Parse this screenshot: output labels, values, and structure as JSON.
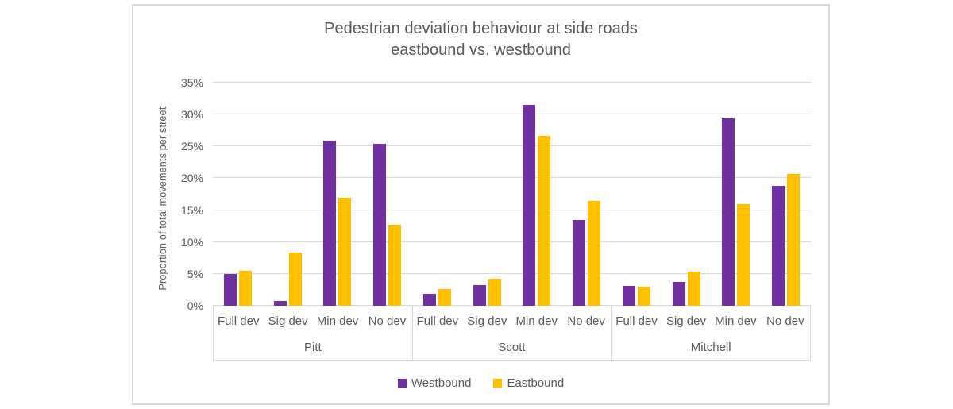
{
  "chart_data": {
    "type": "bar",
    "title": "Pedestrian deviation behaviour at side roads eastbound vs. westbound",
    "title_lines": [
      "Pedestrian deviation behaviour at side roads",
      "eastbound vs. westbound"
    ],
    "xlabel": "",
    "ylabel": "Proportion of total movements per street",
    "ylim": [
      0,
      35
    ],
    "ytick_step": 5,
    "ytick_labels": [
      "0%",
      "5%",
      "10%",
      "15%",
      "20%",
      "25%",
      "30%",
      "35%"
    ],
    "grid": true,
    "legend_position": "bottom",
    "groups": [
      "Pitt",
      "Scott",
      "Mitchell"
    ],
    "categories": [
      "Full dev",
      "Sig dev",
      "Min dev",
      "No dev"
    ],
    "series": [
      {
        "name": "Westbound",
        "color": "#7030A0",
        "values_by_group": [
          [
            5.0,
            0.7,
            25.9,
            25.4
          ],
          [
            1.9,
            3.3,
            31.5,
            13.4
          ],
          [
            3.1,
            3.8,
            29.4,
            18.8
          ]
        ]
      },
      {
        "name": "Eastbound",
        "color": "#FFC000",
        "values_by_group": [
          [
            5.5,
            8.3,
            17.0,
            12.7
          ],
          [
            2.6,
            4.2,
            26.6,
            16.4
          ],
          [
            3.0,
            5.3,
            16.0,
            20.7
          ]
        ]
      }
    ],
    "colors": {
      "text": "#595959",
      "gridline": "#d9d9d9",
      "border": "#d9d9d9"
    }
  }
}
